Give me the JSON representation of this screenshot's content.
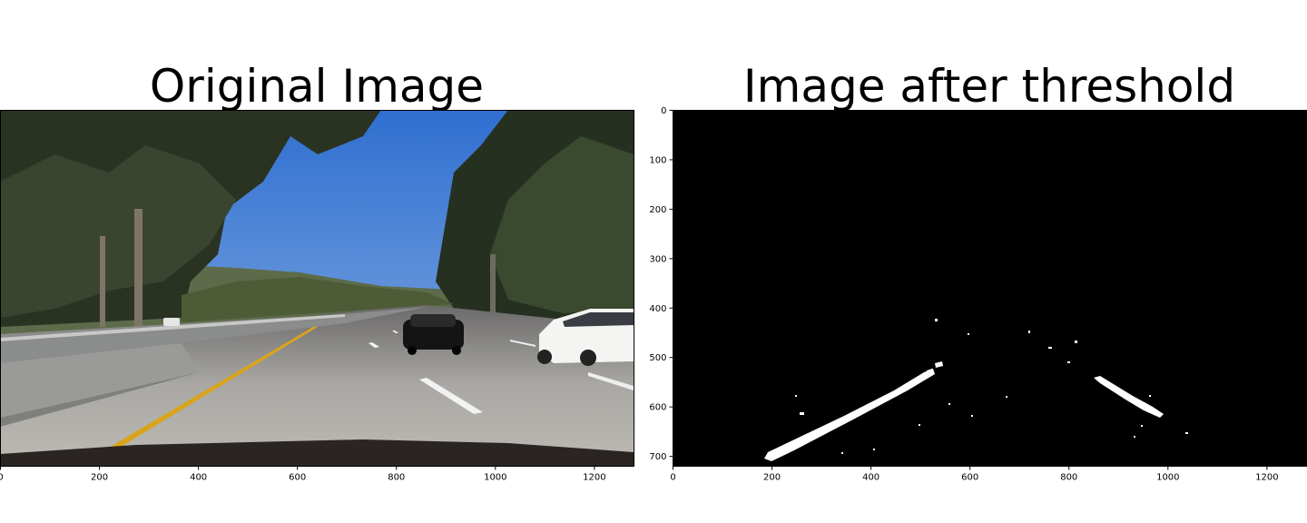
{
  "chart_data": [
    {
      "type": "image",
      "title": "Original Image",
      "xlim": [
        0,
        1280
      ],
      "ylim": [
        720,
        0
      ],
      "xticks": [
        "0",
        "200",
        "400",
        "600",
        "800",
        "1000",
        "1200"
      ],
      "yticks": [],
      "scene": "road-photo"
    },
    {
      "type": "image",
      "title": "Image after threshold",
      "xlim": [
        0,
        1280
      ],
      "ylim": [
        720,
        0
      ],
      "xticks": [
        "0",
        "200",
        "400",
        "600",
        "800",
        "1000",
        "1200"
      ],
      "yticks": [
        "0",
        "100",
        "200",
        "300",
        "400",
        "500",
        "600",
        "700"
      ],
      "scene": "binary-lane-mask"
    }
  ]
}
